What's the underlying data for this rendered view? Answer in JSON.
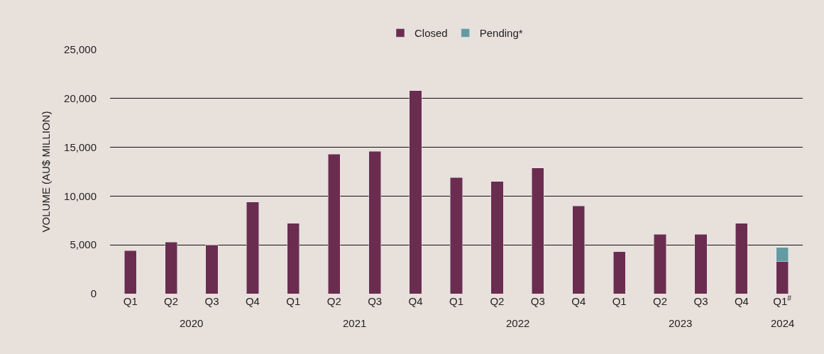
{
  "chart_data": {
    "type": "bar",
    "stacked": true,
    "ylabel": "VOLUME (AU$ MILLION)",
    "categories": [
      "Q1",
      "Q2",
      "Q3",
      "Q4",
      "Q1",
      "Q2",
      "Q3",
      "Q4",
      "Q1",
      "Q2",
      "Q3",
      "Q4",
      "Q1",
      "Q2",
      "Q3",
      "Q4",
      "Q1$^{#}$"
    ],
    "series": [
      {
        "name": "Closed",
        "color": "#6b2d4f",
        "values": [
          4400,
          5300,
          5000,
          9400,
          7200,
          14300,
          14600,
          20800,
          11900,
          11500,
          12900,
          9000,
          4300,
          6100,
          6100,
          7200,
          3300
        ]
      },
      {
        "name": "Pending*",
        "color": "#649ba3",
        "values": [
          null,
          null,
          null,
          null,
          null,
          null,
          null,
          null,
          null,
          null,
          null,
          null,
          null,
          null,
          null,
          null,
          1450
        ]
      }
    ],
    "annotations": [
      "2020",
      "2021",
      "2022",
      "2023",
      "2024"
    ],
    "ylim": [
      0,
      25000
    ],
    "yticks": [
      {
        "value": 0,
        "label": "0"
      },
      {
        "value": 5000,
        "label": "5,000"
      },
      {
        "value": 10000,
        "label": "10,000"
      },
      {
        "value": 15000,
        "label": "15,000"
      },
      {
        "value": 20000,
        "label": "20,000"
      },
      {
        "value": 25000,
        "label": "25,000"
      }
    ],
    "grid": "y",
    "legend": "top"
  }
}
